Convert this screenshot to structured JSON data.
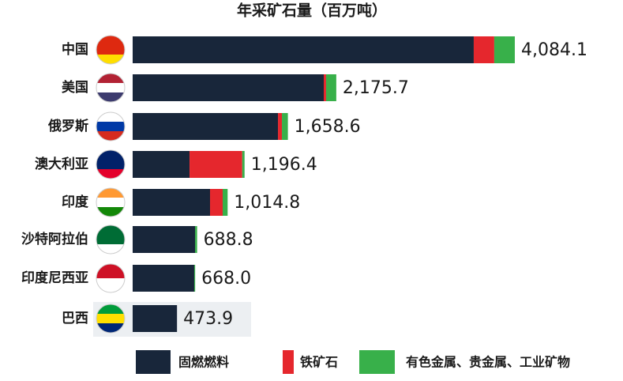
{
  "chart_data": {
    "type": "bar",
    "orientation": "horizontal",
    "stacked": true,
    "title": "年采矿石量（百万吨）",
    "categories": [
      "中国",
      "美国",
      "俄罗斯",
      "澳大利亚",
      "印度",
      "沙特阿拉伯",
      "印度尼西亚",
      "巴西"
    ],
    "series": [
      {
        "name": "固燃燃料",
        "color": "#18263a",
        "values": [
          3645,
          2042,
          1553,
          608,
          827,
          667,
          658,
          473.9
        ]
      },
      {
        "name": "铁矿石",
        "color": "#e5272d",
        "values": [
          219,
          25,
          42,
          563,
          135,
          0,
          0,
          0
        ]
      },
      {
        "name": "有色金属、贵金属、工业矿物",
        "color": "#38b04a",
        "values": [
          220,
          109,
          64,
          25,
          53,
          22,
          10,
          0
        ]
      }
    ],
    "totals": [
      4084.1,
      2175.7,
      1658.6,
      1196.4,
      1014.8,
      688.8,
      668.0,
      473.9
    ],
    "total_labels": [
      "4,084.1",
      "2,175.7",
      "1,658.6",
      "1,196.4",
      "1,014.8",
      "688.8",
      "668.0",
      "473.9"
    ]
  }
}
